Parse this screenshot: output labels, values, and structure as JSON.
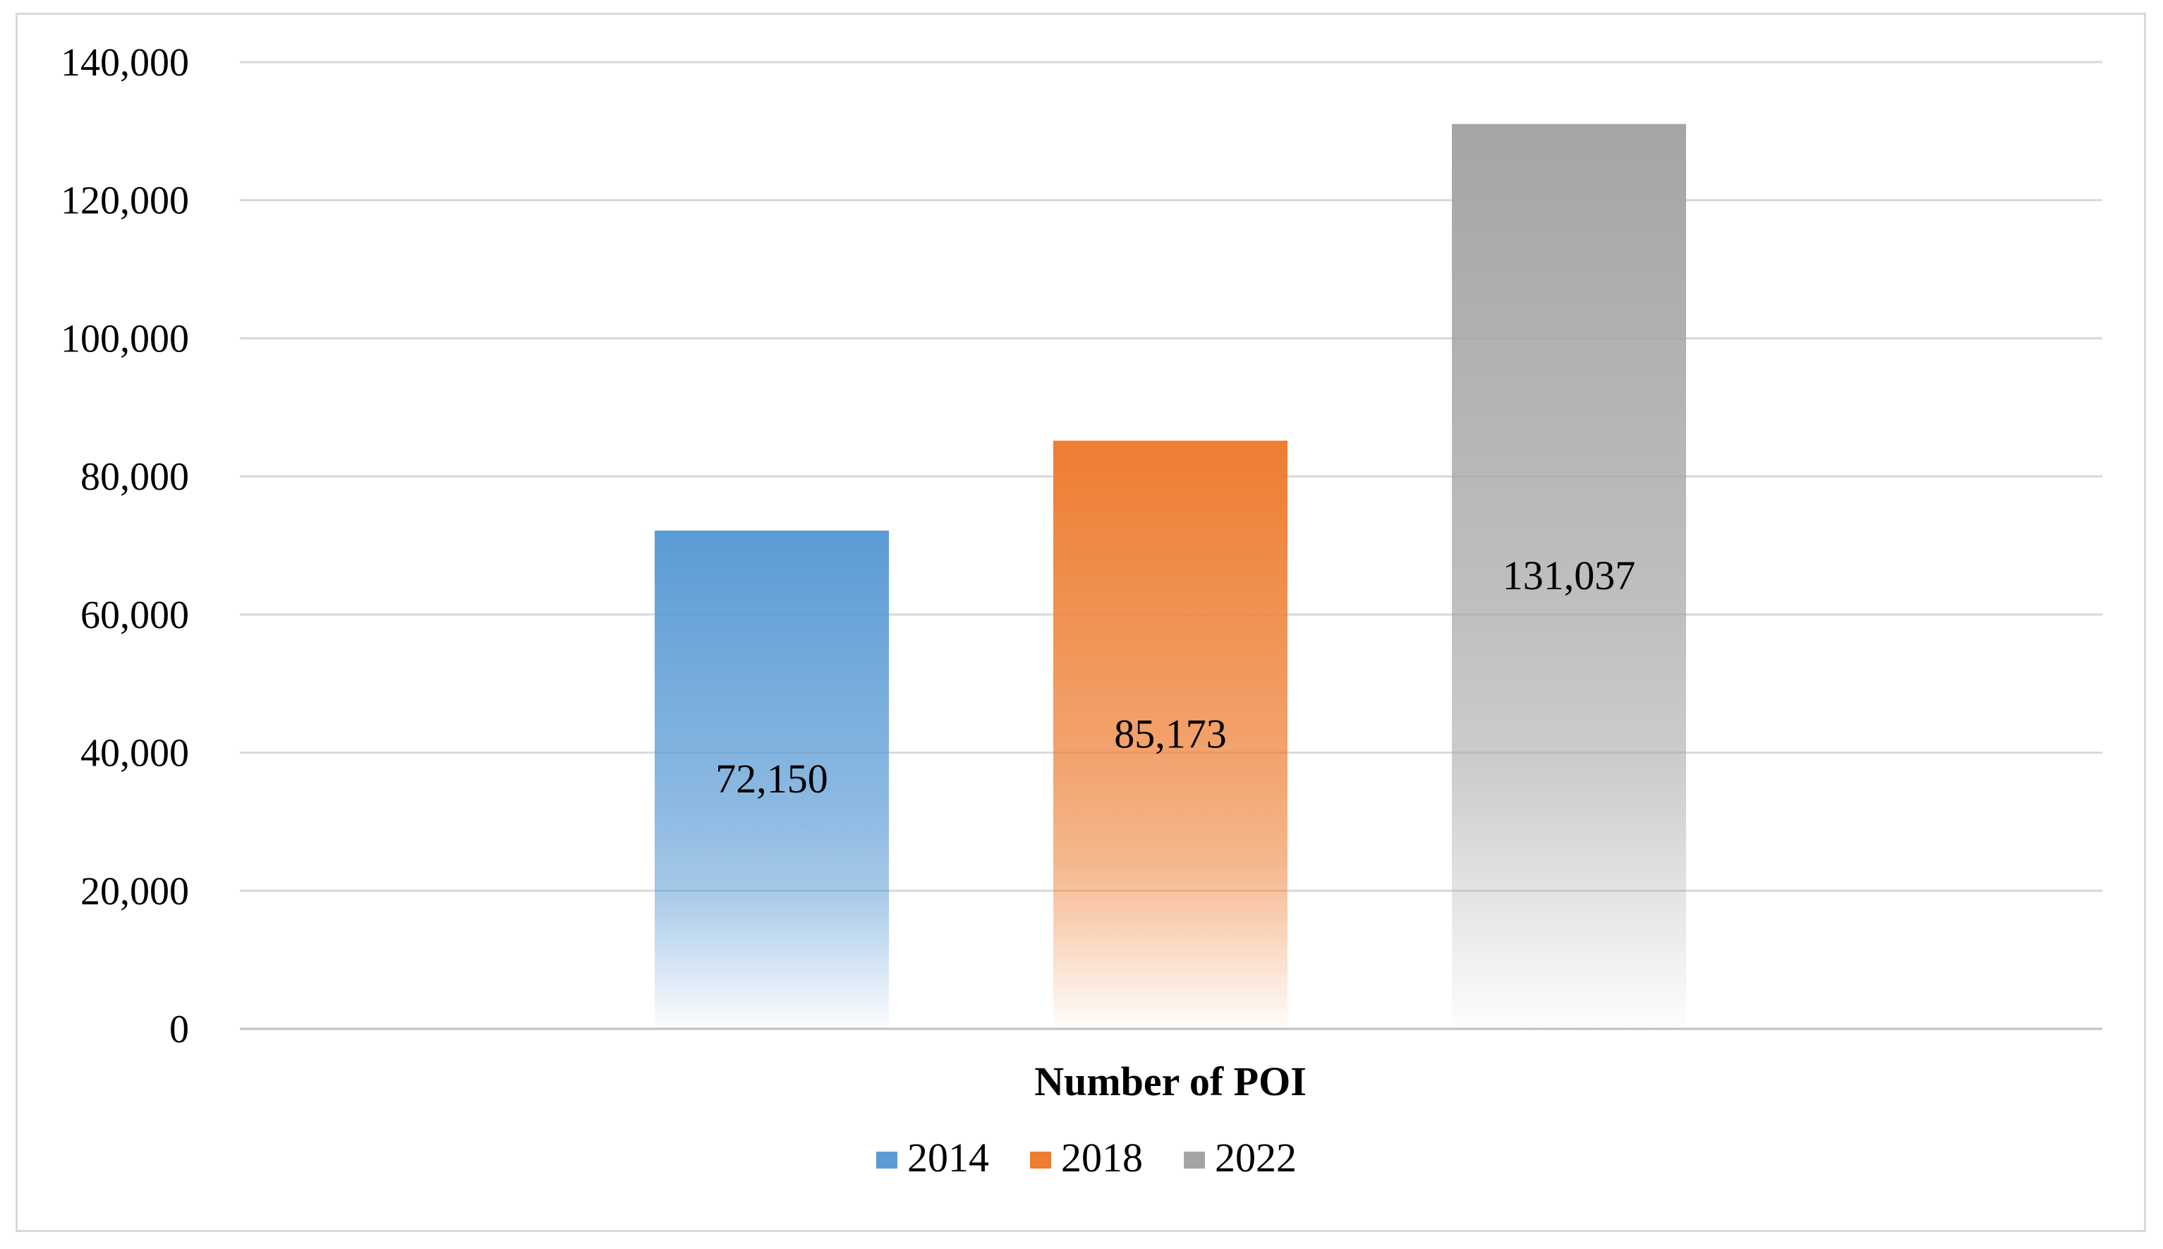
{
  "chart_data": {
    "type": "bar",
    "title": "",
    "xlabel": "Number of POI",
    "ylabel": "",
    "categories": [
      "Number of POI"
    ],
    "series": [
      {
        "name": "2014",
        "values": [
          72150
        ],
        "label": "72,150",
        "color": "#5b9bd5"
      },
      {
        "name": "2018",
        "values": [
          85173
        ],
        "label": "85,173",
        "color": "#ed7d31"
      },
      {
        "name": "2022",
        "values": [
          131037
        ],
        "label": "131,037",
        "color": "#a5a5a5"
      }
    ],
    "ylim": [
      0,
      140000
    ],
    "yticks": [
      {
        "value": 0,
        "label": "0"
      },
      {
        "value": 20000,
        "label": "20,000"
      },
      {
        "value": 40000,
        "label": "40,000"
      },
      {
        "value": 60000,
        "label": "60,000"
      },
      {
        "value": 80000,
        "label": "80,000"
      },
      {
        "value": 100000,
        "label": "100,000"
      },
      {
        "value": 120000,
        "label": "120,000"
      },
      {
        "value": 140000,
        "label": "140,000"
      }
    ],
    "grid": true,
    "legend_position": "bottom",
    "fill_style": "gradient fading to white at base"
  }
}
